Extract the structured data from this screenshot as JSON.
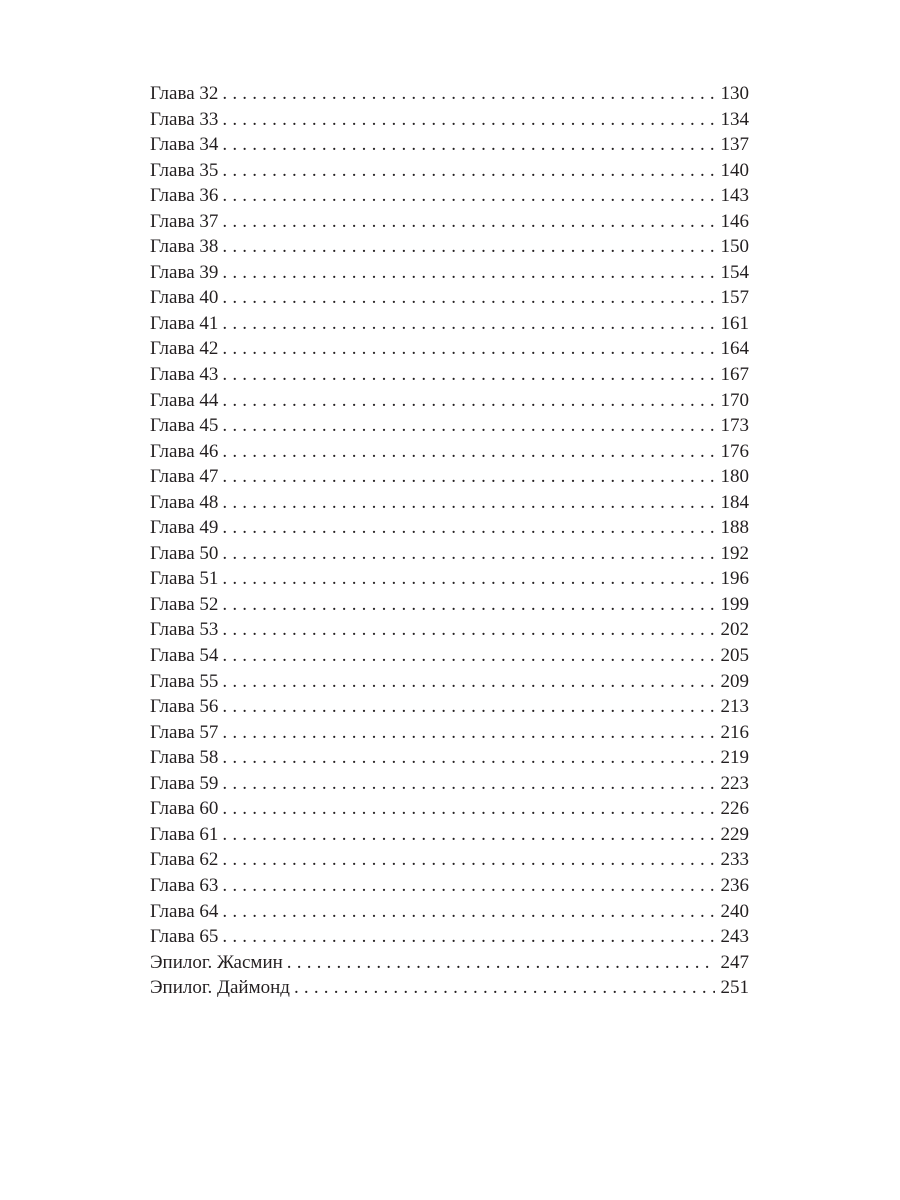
{
  "toc": {
    "entries": [
      {
        "title": "Глава 32",
        "page": "130"
      },
      {
        "title": "Глава 33",
        "page": "134"
      },
      {
        "title": "Глава 34",
        "page": "137"
      },
      {
        "title": "Глава 35",
        "page": "140"
      },
      {
        "title": "Глава 36",
        "page": "143"
      },
      {
        "title": "Глава 37",
        "page": "146"
      },
      {
        "title": "Глава 38",
        "page": "150"
      },
      {
        "title": "Глава 39",
        "page": "154"
      },
      {
        "title": "Глава 40",
        "page": "157"
      },
      {
        "title": "Глава 41",
        "page": "161"
      },
      {
        "title": "Глава 42",
        "page": "164"
      },
      {
        "title": "Глава 43",
        "page": "167"
      },
      {
        "title": "Глава 44",
        "page": "170"
      },
      {
        "title": "Глава 45",
        "page": "173"
      },
      {
        "title": "Глава 46",
        "page": "176"
      },
      {
        "title": "Глава 47",
        "page": "180"
      },
      {
        "title": "Глава 48",
        "page": "184"
      },
      {
        "title": "Глава 49",
        "page": "188"
      },
      {
        "title": "Глава 50",
        "page": "192"
      },
      {
        "title": "Глава 51",
        "page": "196"
      },
      {
        "title": "Глава 52",
        "page": "199"
      },
      {
        "title": "Глава 53",
        "page": "202"
      },
      {
        "title": "Глава 54",
        "page": "205"
      },
      {
        "title": "Глава 55",
        "page": "209"
      },
      {
        "title": "Глава 56",
        "page": "213"
      },
      {
        "title": "Глава 57",
        "page": "216"
      },
      {
        "title": "Глава 58",
        "page": "219"
      },
      {
        "title": "Глава 59",
        "page": "223"
      },
      {
        "title": "Глава 60",
        "page": "226"
      },
      {
        "title": "Глава 61",
        "page": "229"
      },
      {
        "title": "Глава 62",
        "page": "233"
      },
      {
        "title": "Глава 63",
        "page": "236"
      },
      {
        "title": "Глава 64",
        "page": "240"
      },
      {
        "title": "Глава 65",
        "page": "243"
      },
      {
        "title": "Эпилог. Жасмин",
        "page": "247"
      },
      {
        "title": "Эпилог. Даймонд",
        "page": "251"
      }
    ]
  }
}
